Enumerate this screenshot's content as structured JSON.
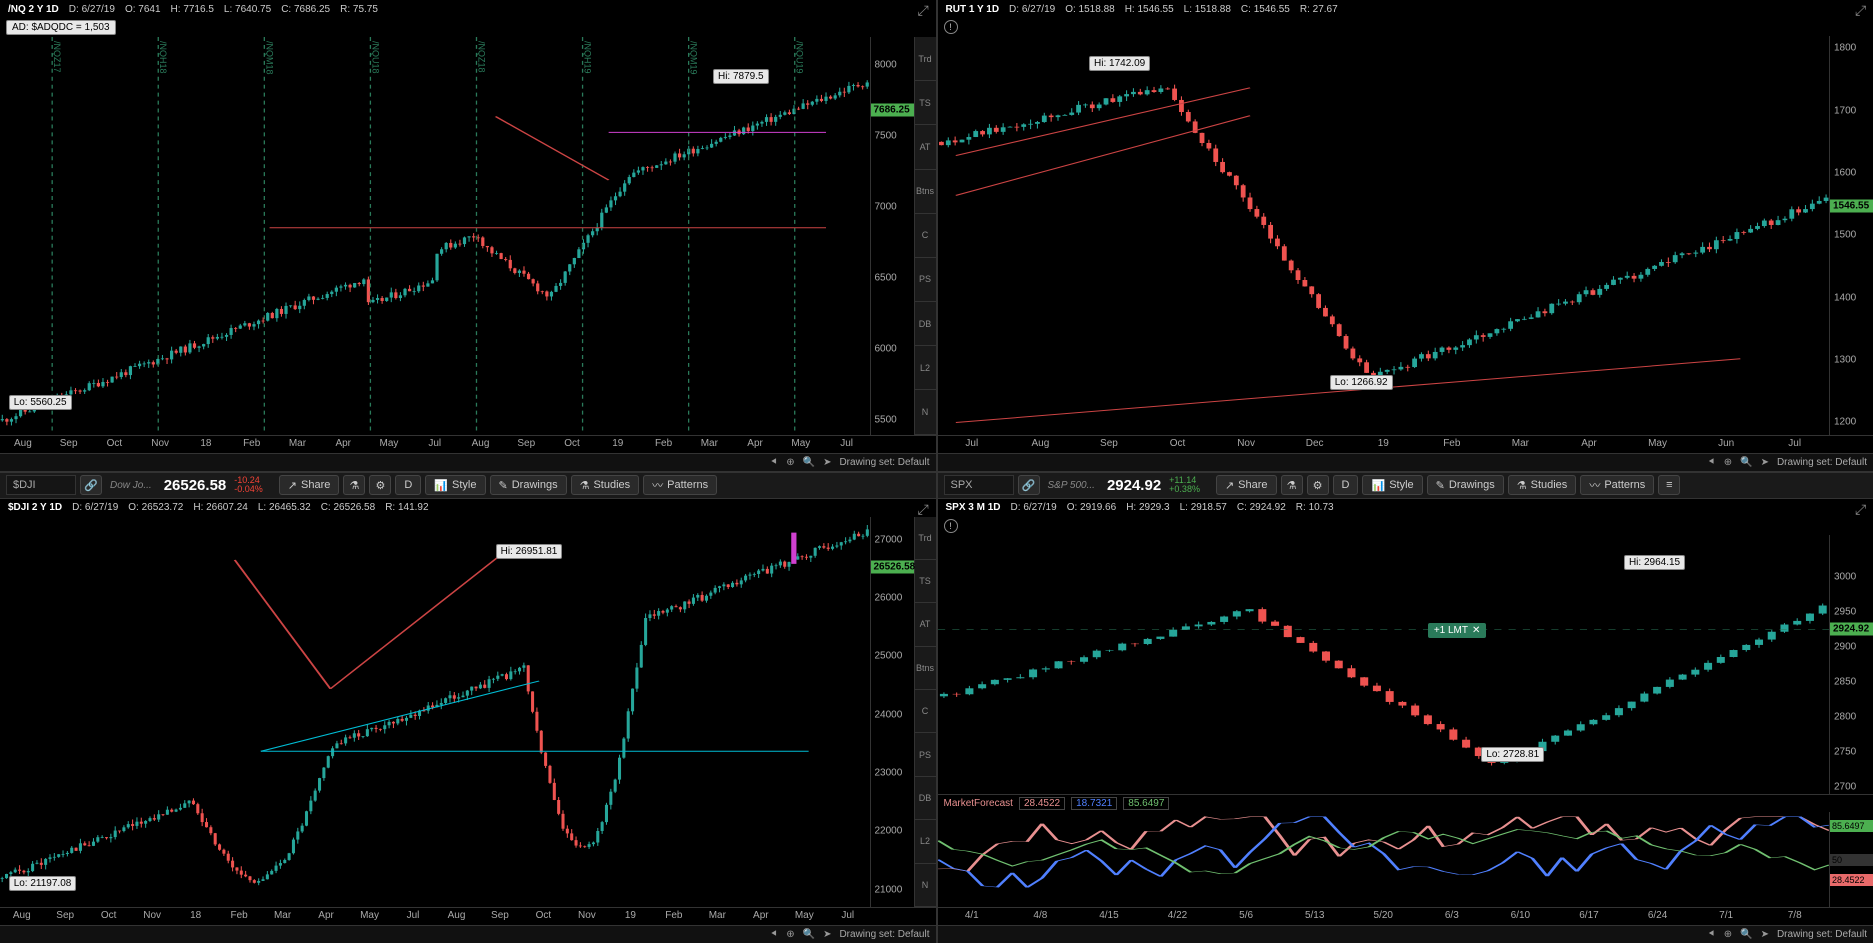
{
  "colors": {
    "up": "#26a69a",
    "down": "#ef5350",
    "bg": "#000000",
    "grid": "#1a1a1a",
    "text": "#c0c0c0",
    "accent_green": "#4caf50",
    "accent_red": "#f44336",
    "trendline_red": "#cc4444",
    "trendline_cyan": "#00bcd4",
    "trendline_magenta": "#d040d0",
    "vert_dash": "#2a7a5a"
  },
  "side_tabs": [
    "Trd",
    "TS",
    "AT",
    "Btns",
    "C",
    "PS",
    "DB",
    "L2",
    "N"
  ],
  "footer": {
    "drawing_set": "Drawing set: Default"
  },
  "panels": {
    "nq": {
      "title": "/NQ 2 Y 1D",
      "date": "6/27/19",
      "O": "7641",
      "H": "7716.5",
      "L": "7640.75",
      "C": "7686.25",
      "R": "75.75",
      "badge": "AD: $ADQDC = 1,503",
      "hi_label": "Hi: 7879.5",
      "lo_label": "Lo: 5560.25",
      "last": "7686.25",
      "yticks": [
        8000,
        7500,
        7000,
        6500,
        6000,
        5500
      ],
      "ylim": [
        5400,
        8200
      ],
      "xticks": [
        "Aug",
        "Sep",
        "Oct",
        "Nov",
        "18",
        "Feb",
        "Mar",
        "Apr",
        "May",
        "Jul",
        "Aug",
        "Sep",
        "Oct",
        "19",
        "Feb",
        "Mar",
        "Apr",
        "May",
        "Jul"
      ],
      "vert_labels": [
        "/NQZ17",
        "/NQH18",
        "/NQM18",
        "/NQU18",
        "/NQZ18",
        "/NQH19",
        "/NQM19",
        "/NQU19"
      ],
      "trendlines": [
        {
          "stroke": "#cc4444",
          "pts": [
            [
              31,
              48
            ],
            [
              95,
              48
            ]
          ]
        },
        {
          "stroke": "#cc4444",
          "pts": [
            [
              57,
              20
            ],
            [
              70,
              36
            ]
          ]
        },
        {
          "stroke": "#d040d0",
          "pts": [
            [
              70,
              24
            ],
            [
              95,
              24
            ]
          ]
        }
      ]
    },
    "rut": {
      "title": "RUT 1 Y 1D",
      "date": "6/27/19",
      "O": "1518.88",
      "H": "1546.55",
      "L": "1518.88",
      "C": "1546.55",
      "R": "27.67",
      "hi_label": "Hi: 1742.09",
      "lo_label": "Lo: 1266.92",
      "last": "1546.55",
      "yticks": [
        1800,
        1700,
        1600,
        1500,
        1400,
        1300,
        1200
      ],
      "ylim": [
        1180,
        1820
      ],
      "xticks": [
        "Jul",
        "Aug",
        "Sep",
        "Oct",
        "Nov",
        "Dec",
        "19",
        "Feb",
        "Mar",
        "Apr",
        "May",
        "Jun",
        "Jul"
      ],
      "trendlines": [
        {
          "stroke": "#cc4444",
          "pts": [
            [
              2,
              30
            ],
            [
              35,
              13
            ]
          ]
        },
        {
          "stroke": "#cc4444",
          "pts": [
            [
              2,
              40
            ],
            [
              35,
              20
            ]
          ]
        },
        {
          "stroke": "#cc4444",
          "pts": [
            [
              2,
              97
            ],
            [
              90,
              81
            ]
          ]
        }
      ]
    },
    "dji": {
      "symbol": "$DJI",
      "desc": "Dow Jo...",
      "last_big": "26526.58",
      "chg_abs": "-10.24",
      "chg_pct": "-0.04%",
      "title": "$DJI 2 Y 1D",
      "date": "6/27/19",
      "O": "26523.72",
      "H": "26607.24",
      "L": "26465.32",
      "C": "26526.58",
      "R": "141.92",
      "hi_label": "Hi: 26951.81",
      "lo_label": "Lo: 21197.08",
      "last": "26526.58",
      "yticks": [
        27000,
        26000,
        25000,
        24000,
        23000,
        22000,
        21000
      ],
      "ylim": [
        20700,
        27400
      ],
      "xticks": [
        "Aug",
        "Sep",
        "Oct",
        "Nov",
        "18",
        "Feb",
        "Mar",
        "Apr",
        "May",
        "Jul",
        "Aug",
        "Sep",
        "Oct",
        "Nov",
        "19",
        "Feb",
        "Mar",
        "Apr",
        "May",
        "Jul"
      ],
      "toolbar": {
        "share": "Share",
        "style": "Style",
        "drawings": "Drawings",
        "studies": "Studies",
        "patterns": "Patterns",
        "D": "D"
      },
      "trendlines": [
        {
          "stroke": "#cc4444",
          "pts": [
            [
              27,
              11
            ],
            [
              38,
              44
            ]
          ]
        },
        {
          "stroke": "#cc4444",
          "pts": [
            [
              38,
              44
            ],
            [
              58,
              9
            ]
          ]
        },
        {
          "stroke": "#00bcd4",
          "pts": [
            [
              30,
              60
            ],
            [
              62,
              42
            ]
          ]
        },
        {
          "stroke": "#00bcd4",
          "pts": [
            [
              30,
              60
            ],
            [
              93,
              60
            ]
          ]
        }
      ]
    },
    "spx": {
      "symbol": "SPX",
      "desc": "S&P 500...",
      "last_big": "2924.92",
      "chg_abs": "+11.14",
      "chg_pct": "+0.38%",
      "title": "SPX 3 M 1D",
      "date": "6/27/19",
      "O": "2919.66",
      "H": "2929.3",
      "L": "2918.57",
      "C": "2924.92",
      "R": "10.73",
      "hi_label": "Hi: 2964.15",
      "lo_label": "Lo: 2728.81",
      "last": "2924.92",
      "yticks": [
        3000,
        2950,
        2900,
        2850,
        2800,
        2750,
        2700
      ],
      "ylim": [
        2690,
        3060
      ],
      "xticks": [
        "4/1",
        "4/8",
        "4/15",
        "4/22",
        "5/6",
        "5/13",
        "5/20",
        "6/3",
        "6/10",
        "6/17",
        "6/24",
        "7/1",
        "7/8"
      ],
      "toolbar": {
        "share": "Share",
        "style": "Style",
        "drawings": "Drawings",
        "studies": "Studies",
        "patterns": "Patterns",
        "D": "D"
      },
      "lmt_badge": "+1 LMT",
      "mf": {
        "label": "MarketForecast",
        "v1": "28.4522",
        "v2": "18.7321",
        "v3": "85.6497",
        "c1": "#e89090",
        "c2": "#5080ff",
        "c3": "#70c070"
      }
    }
  }
}
